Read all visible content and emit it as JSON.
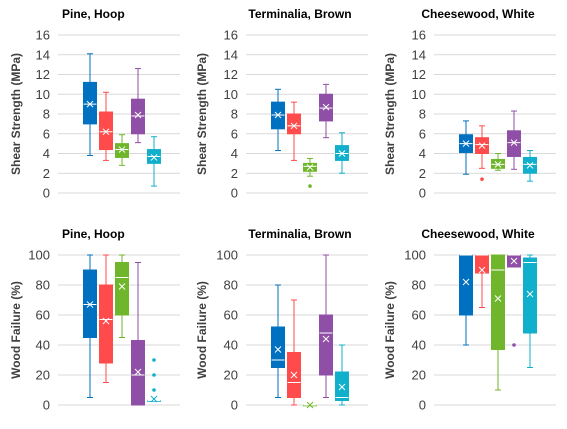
{
  "figure": {
    "colors": [
      "#0070C0",
      "#FF4B4B",
      "#70B62C",
      "#8F4FA6",
      "#10AFCB"
    ],
    "grid_color": "#D9D9D9",
    "axis_label_color": "#404040"
  },
  "chart_data": [
    {
      "type": "box",
      "title": "Pine, Hoop",
      "ylabel": "Shear Strength (MPa)",
      "ylim": [
        0,
        16
      ],
      "yticks": [
        0,
        2,
        4,
        6,
        8,
        10,
        12,
        14,
        16
      ],
      "grid": true,
      "boxes": [
        {
          "min": 3.8,
          "q1": 7.0,
          "median": 9.0,
          "q3": 11.2,
          "max": 14.1,
          "mean": 9.0,
          "outliers": []
        },
        {
          "min": 3.3,
          "q1": 4.4,
          "median": 6.2,
          "q3": 8.2,
          "max": 10.2,
          "mean": 6.2,
          "outliers": []
        },
        {
          "min": 2.8,
          "q1": 3.6,
          "median": 4.4,
          "q3": 5.0,
          "max": 5.9,
          "mean": 4.4,
          "outliers": []
        },
        {
          "min": 5.1,
          "q1": 6.0,
          "median": 7.8,
          "q3": 9.5,
          "max": 12.6,
          "mean": 7.9,
          "outliers": []
        },
        {
          "min": 0.7,
          "q1": 3.0,
          "median": 3.7,
          "q3": 4.4,
          "max": 5.7,
          "mean": 3.6,
          "outliers": []
        }
      ]
    },
    {
      "type": "box",
      "title": "Terminalia, Brown",
      "ylabel": "Shear Strength (MPa)",
      "ylim": [
        0,
        16
      ],
      "yticks": [
        0,
        2,
        4,
        6,
        8,
        10,
        12,
        14,
        16
      ],
      "grid": true,
      "boxes": [
        {
          "min": 4.3,
          "q1": 6.5,
          "median": 7.9,
          "q3": 9.2,
          "max": 10.5,
          "mean": 7.9,
          "outliers": []
        },
        {
          "min": 3.3,
          "q1": 6.0,
          "median": 6.8,
          "q3": 8.0,
          "max": 9.2,
          "mean": 6.8,
          "outliers": []
        },
        {
          "min": 1.7,
          "q1": 2.2,
          "median": 2.7,
          "q3": 3.0,
          "max": 3.5,
          "mean": 2.6,
          "outliers": [
            0.7
          ]
        },
        {
          "min": 5.6,
          "q1": 7.3,
          "median": 8.6,
          "q3": 10.0,
          "max": 11.0,
          "mean": 8.7,
          "outliers": []
        },
        {
          "min": 2.0,
          "q1": 3.3,
          "median": 4.0,
          "q3": 4.8,
          "max": 6.1,
          "mean": 4.0,
          "outliers": []
        }
      ]
    },
    {
      "type": "box",
      "title": "Cheesewood, White",
      "ylabel": "Shear Strength (MPa)",
      "ylim": [
        0,
        16
      ],
      "yticks": [
        0,
        2,
        4,
        6,
        8,
        10,
        12,
        14,
        16
      ],
      "grid": true,
      "boxes": [
        {
          "min": 1.9,
          "q1": 4.1,
          "median": 5.0,
          "q3": 5.9,
          "max": 7.3,
          "mean": 5.0,
          "outliers": []
        },
        {
          "min": 2.5,
          "q1": 4.0,
          "median": 4.9,
          "q3": 5.6,
          "max": 6.8,
          "mean": 4.8,
          "outliers": [
            1.4
          ]
        },
        {
          "min": 2.3,
          "q1": 2.5,
          "median": 2.9,
          "q3": 3.4,
          "max": 4.0,
          "mean": 2.9,
          "outliers": []
        },
        {
          "min": 2.4,
          "q1": 3.7,
          "median": 5.1,
          "q3": 6.3,
          "max": 8.3,
          "mean": 5.1,
          "outliers": []
        },
        {
          "min": 1.2,
          "q1": 2.0,
          "median": 2.9,
          "q3": 3.6,
          "max": 4.3,
          "mean": 2.8,
          "outliers": []
        }
      ]
    },
    {
      "type": "box",
      "title": "Pine, Hoop",
      "ylabel": "Wood Failure (%)",
      "ylim": [
        0,
        100
      ],
      "yticks": [
        0,
        20,
        40,
        60,
        80,
        100
      ],
      "grid": true,
      "boxes": [
        {
          "min": 5,
          "q1": 45,
          "median": 67,
          "q3": 90,
          "max": 100,
          "mean": 67,
          "outliers": []
        },
        {
          "min": 15,
          "q1": 28,
          "median": 57,
          "q3": 80,
          "max": 100,
          "mean": 56,
          "outliers": []
        },
        {
          "min": 45,
          "q1": 60,
          "median": 85,
          "q3": 95,
          "max": 100,
          "mean": 79,
          "outliers": []
        },
        {
          "min": 0,
          "q1": 0,
          "median": 20,
          "q3": 43,
          "max": 95,
          "mean": 22,
          "outliers": []
        },
        {
          "min": 3,
          "q1": 3,
          "median": 3,
          "q3": 3,
          "max": 3,
          "mean": 4,
          "outliers": [
            10,
            20,
            30
          ]
        }
      ]
    },
    {
      "type": "box",
      "title": "Terminalia, Brown",
      "ylabel": "Wood Failure (%)",
      "ylim": [
        0,
        100
      ],
      "yticks": [
        0,
        20,
        40,
        60,
        80,
        100
      ],
      "grid": true,
      "boxes": [
        {
          "min": 5,
          "q1": 25,
          "median": 30,
          "q3": 52,
          "max": 80,
          "mean": 37,
          "outliers": []
        },
        {
          "min": 0,
          "q1": 5,
          "median": 15,
          "q3": 35,
          "max": 70,
          "mean": 20,
          "outliers": []
        },
        {
          "min": 0,
          "q1": 0,
          "median": 0,
          "q3": 0,
          "max": 0,
          "mean": 0,
          "outliers": []
        },
        {
          "min": 5,
          "q1": 20,
          "median": 48,
          "q3": 60,
          "max": 100,
          "mean": 44,
          "outliers": []
        },
        {
          "min": 0,
          "q1": 3,
          "median": 5,
          "q3": 22,
          "max": 40,
          "mean": 12,
          "outliers": []
        }
      ]
    },
    {
      "type": "box",
      "title": "Cheesewood, White",
      "ylabel": "Wood Failure (%)",
      "ylim": [
        0,
        100
      ],
      "yticks": [
        0,
        20,
        40,
        60,
        80,
        100
      ],
      "grid": true,
      "boxes": [
        {
          "min": 40,
          "q1": 60,
          "median": 100,
          "q3": 100,
          "max": 100,
          "mean": 82,
          "outliers": []
        },
        {
          "min": 65,
          "q1": 88,
          "median": 100,
          "q3": 100,
          "max": 100,
          "mean": 90,
          "outliers": []
        },
        {
          "min": 10,
          "q1": 37,
          "median": 90,
          "q3": 100,
          "max": 100,
          "mean": 71,
          "outliers": []
        },
        {
          "min": 92,
          "q1": 92,
          "median": 100,
          "q3": 100,
          "max": 100,
          "mean": 96,
          "outliers": [
            40
          ]
        },
        {
          "min": 25,
          "q1": 48,
          "median": 95,
          "q3": 98,
          "max": 100,
          "mean": 74,
          "outliers": []
        }
      ]
    }
  ]
}
